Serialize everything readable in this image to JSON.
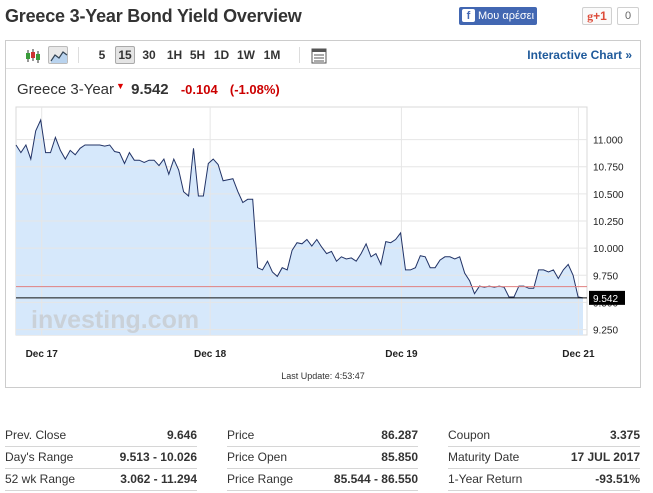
{
  "page": {
    "title": "Greece 3-Year Bond Yield Overview"
  },
  "social": {
    "facebook_label": "Μου αρέσει",
    "gplus_label": "+1",
    "gplus_count": "0"
  },
  "toolbar": {
    "periods": [
      "5",
      "15",
      "30",
      "1H",
      "5H",
      "1D",
      "1W",
      "1M"
    ],
    "active_period": "15",
    "interactive_label": "Interactive Chart »"
  },
  "quote": {
    "name": "Greece 3-Year",
    "last": "9.542",
    "change": "-0.104",
    "change_pct": "(-1.08%)",
    "down_color": "#cc0000"
  },
  "chart_data": {
    "type": "area",
    "x_labels": [
      "Dec 17",
      "Dec 18",
      "Dec 19",
      "Dec 21"
    ],
    "y_ticks": [
      11.0,
      10.75,
      10.5,
      10.25,
      10.0,
      9.75,
      9.5,
      9.25
    ],
    "y_tick_labels": [
      "11.000",
      "10.750",
      "10.500",
      "10.250",
      "10.000",
      "9.750",
      "9.500",
      "9.250"
    ],
    "ylim": [
      9.2,
      11.3
    ],
    "last_value_label": "9.542",
    "last_value": 9.542,
    "prev_close": 9.646,
    "watermark": "investing.com",
    "grid": true,
    "line_color": "#223366",
    "fill_color": "#d6e8fb",
    "series": [
      {
        "values": [
          10.95,
          10.88,
          10.95,
          10.82,
          11.08,
          11.18,
          10.88,
          10.88,
          11.02,
          10.9,
          10.82,
          10.9,
          10.86,
          10.92,
          10.95,
          10.95,
          10.95,
          10.95,
          10.94,
          10.95,
          10.89,
          10.88,
          10.78,
          10.88,
          10.81,
          10.81,
          10.79,
          10.81,
          10.81,
          10.76,
          10.82,
          10.68,
          10.82,
          10.72,
          10.52,
          10.48,
          10.92,
          10.48,
          10.48,
          10.78,
          10.82,
          10.77,
          10.62,
          10.63,
          10.64,
          10.52,
          10.42,
          10.45,
          10.45,
          9.82,
          9.8,
          9.88,
          9.78,
          9.74,
          9.82,
          9.8,
          9.98,
          10.05,
          10.04,
          10.08,
          10.02,
          10.08,
          10.01,
          9.95,
          9.97,
          9.88,
          9.92,
          9.9,
          9.91,
          9.88,
          9.95,
          10.04,
          9.92,
          9.95,
          9.85,
          10.06,
          10.05,
          10.08,
          10.14,
          9.8,
          9.8,
          9.82,
          9.93,
          9.92,
          9.82,
          9.82,
          9.89,
          9.92,
          9.92,
          9.9,
          9.92,
          9.77,
          9.7,
          9.58,
          9.65,
          9.64,
          9.65,
          9.64,
          9.65,
          9.64,
          9.55,
          9.55,
          9.65,
          9.65,
          9.63,
          9.63,
          9.8,
          9.8,
          9.78,
          9.8,
          9.72,
          9.8,
          9.85,
          9.75,
          9.55,
          9.542
        ]
      }
    ]
  },
  "last_update": "Last Update: 4:53:47",
  "stats": {
    "col1": [
      {
        "label": "Prev. Close",
        "value": "9.646"
      },
      {
        "label": "Day's Range",
        "value": "9.513 - 10.026"
      },
      {
        "label": "52 wk Range",
        "value": "3.062 - 11.294"
      }
    ],
    "col2": [
      {
        "label": "Price",
        "value": "86.287"
      },
      {
        "label": "Price Open",
        "value": "85.850"
      },
      {
        "label": "Price Range",
        "value": "85.544 - 86.550"
      }
    ],
    "col3": [
      {
        "label": "Coupon",
        "value": "3.375"
      },
      {
        "label": "Maturity Date",
        "value": "17 JUL 2017"
      },
      {
        "label": "1-Year Return",
        "value": "-93.51%"
      }
    ]
  }
}
